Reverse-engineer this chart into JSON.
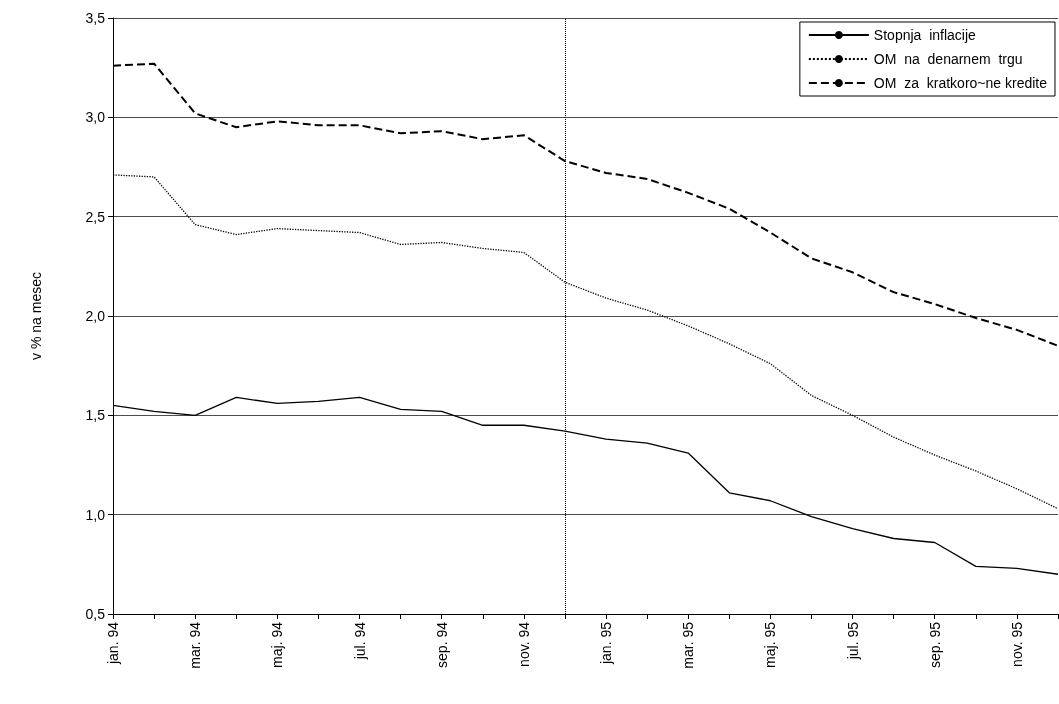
{
  "chart_data": {
    "type": "line",
    "ylabel": "v % na mesec",
    "categories": [
      "jan. 94",
      null,
      "mar. 94",
      null,
      "maj. 94",
      null,
      "jul. 94",
      null,
      "sep. 94",
      null,
      "nov. 94",
      null,
      "jan. 95",
      null,
      "mar. 95",
      null,
      "maj. 95",
      null,
      "jul. 95",
      null,
      "sep. 95",
      null,
      "nov. 95",
      null
    ],
    "series": [
      {
        "name": "Stopnja  inflacije",
        "color": "#000000",
        "line_style": "solid",
        "values": [
          1.55,
          1.52,
          1.5,
          1.59,
          1.56,
          1.57,
          1.59,
          1.53,
          1.52,
          1.45,
          1.45,
          1.42,
          1.38,
          1.36,
          1.31,
          1.11,
          1.07,
          0.99,
          0.93,
          0.88,
          0.86,
          0.74,
          0.73,
          0.7
        ]
      },
      {
        "name": "OM  na  denarnem  trgu",
        "color": "#000000",
        "line_style": "dotted",
        "values": [
          2.71,
          2.7,
          2.46,
          2.41,
          2.44,
          2.43,
          2.42,
          2.36,
          2.37,
          2.34,
          2.32,
          2.17,
          2.09,
          2.03,
          1.95,
          1.86,
          1.76,
          1.6,
          1.5,
          1.39,
          1.3,
          1.22,
          1.13,
          1.03
        ]
      },
      {
        "name": "OM  za  kratkoro~ne kredite",
        "color": "#000000",
        "line_style": "dashed",
        "values": [
          3.26,
          3.27,
          3.02,
          2.95,
          2.98,
          2.96,
          2.96,
          2.92,
          2.93,
          2.89,
          2.91,
          2.78,
          2.72,
          2.69,
          2.62,
          2.54,
          2.42,
          2.29,
          2.22,
          2.12,
          2.06,
          1.99,
          1.93,
          1.85
        ]
      }
    ],
    "ylim": [
      0.5,
      3.5
    ],
    "yticks": [
      {
        "value": 0.5,
        "label": "0,5"
      },
      {
        "value": 1,
        "label": "1,0"
      },
      {
        "value": 1.5,
        "label": "1,5"
      },
      {
        "value": 2,
        "label": "2,0"
      },
      {
        "value": 2.5,
        "label": "2,5"
      },
      {
        "value": 3,
        "label": "3,0"
      },
      {
        "value": 3.5,
        "label": "3,5"
      }
    ],
    "grid": "y",
    "legend": "top right",
    "marker": "none"
  }
}
